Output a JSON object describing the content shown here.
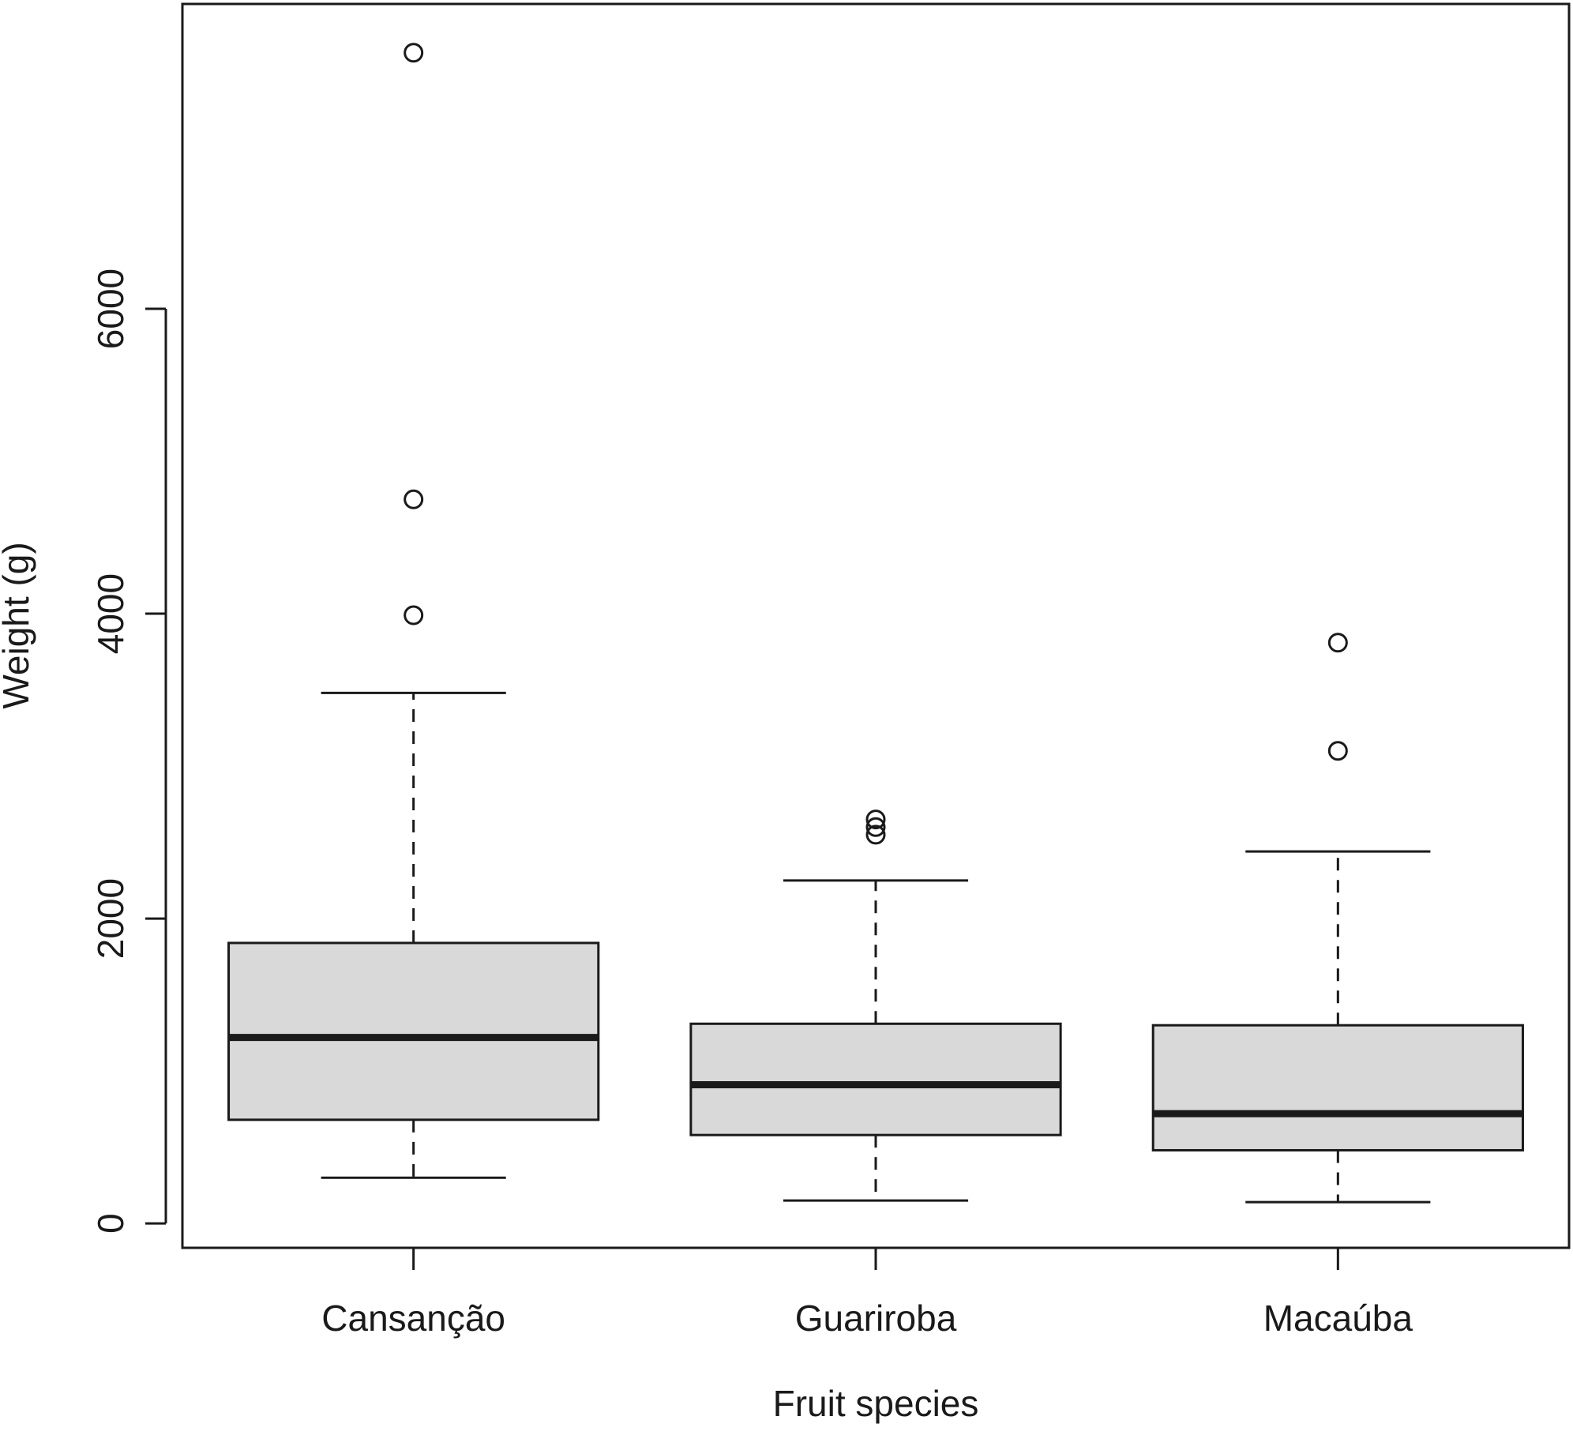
{
  "chart_data": {
    "type": "box",
    "title": "",
    "xlabel": "Fruit species",
    "ylabel": "Weight (g)",
    "ylim": [
      -160,
      8000
    ],
    "yticks": [
      0,
      2000,
      4000,
      6000
    ],
    "grid": false,
    "legend": "none",
    "box_fill": "#d9d9d9",
    "line_color": "#1a1a1a",
    "categories": [
      "Cansanção",
      "Guariroba",
      "Macaúba"
    ],
    "boxes": [
      {
        "name": "Cansanção",
        "whisker_low": 300,
        "q1": 680,
        "median": 1220,
        "q3": 1840,
        "whisker_high": 3480,
        "outliers": [
          3990,
          4750,
          7680
        ]
      },
      {
        "name": "Guariroba",
        "whisker_low": 150,
        "q1": 580,
        "median": 910,
        "q3": 1310,
        "whisker_high": 2250,
        "outliers": [
          2550,
          2600,
          2650
        ]
      },
      {
        "name": "Macaúba",
        "whisker_low": 140,
        "q1": 480,
        "median": 720,
        "q3": 1300,
        "whisker_high": 2440,
        "outliers": [
          3100,
          3810
        ]
      }
    ]
  }
}
